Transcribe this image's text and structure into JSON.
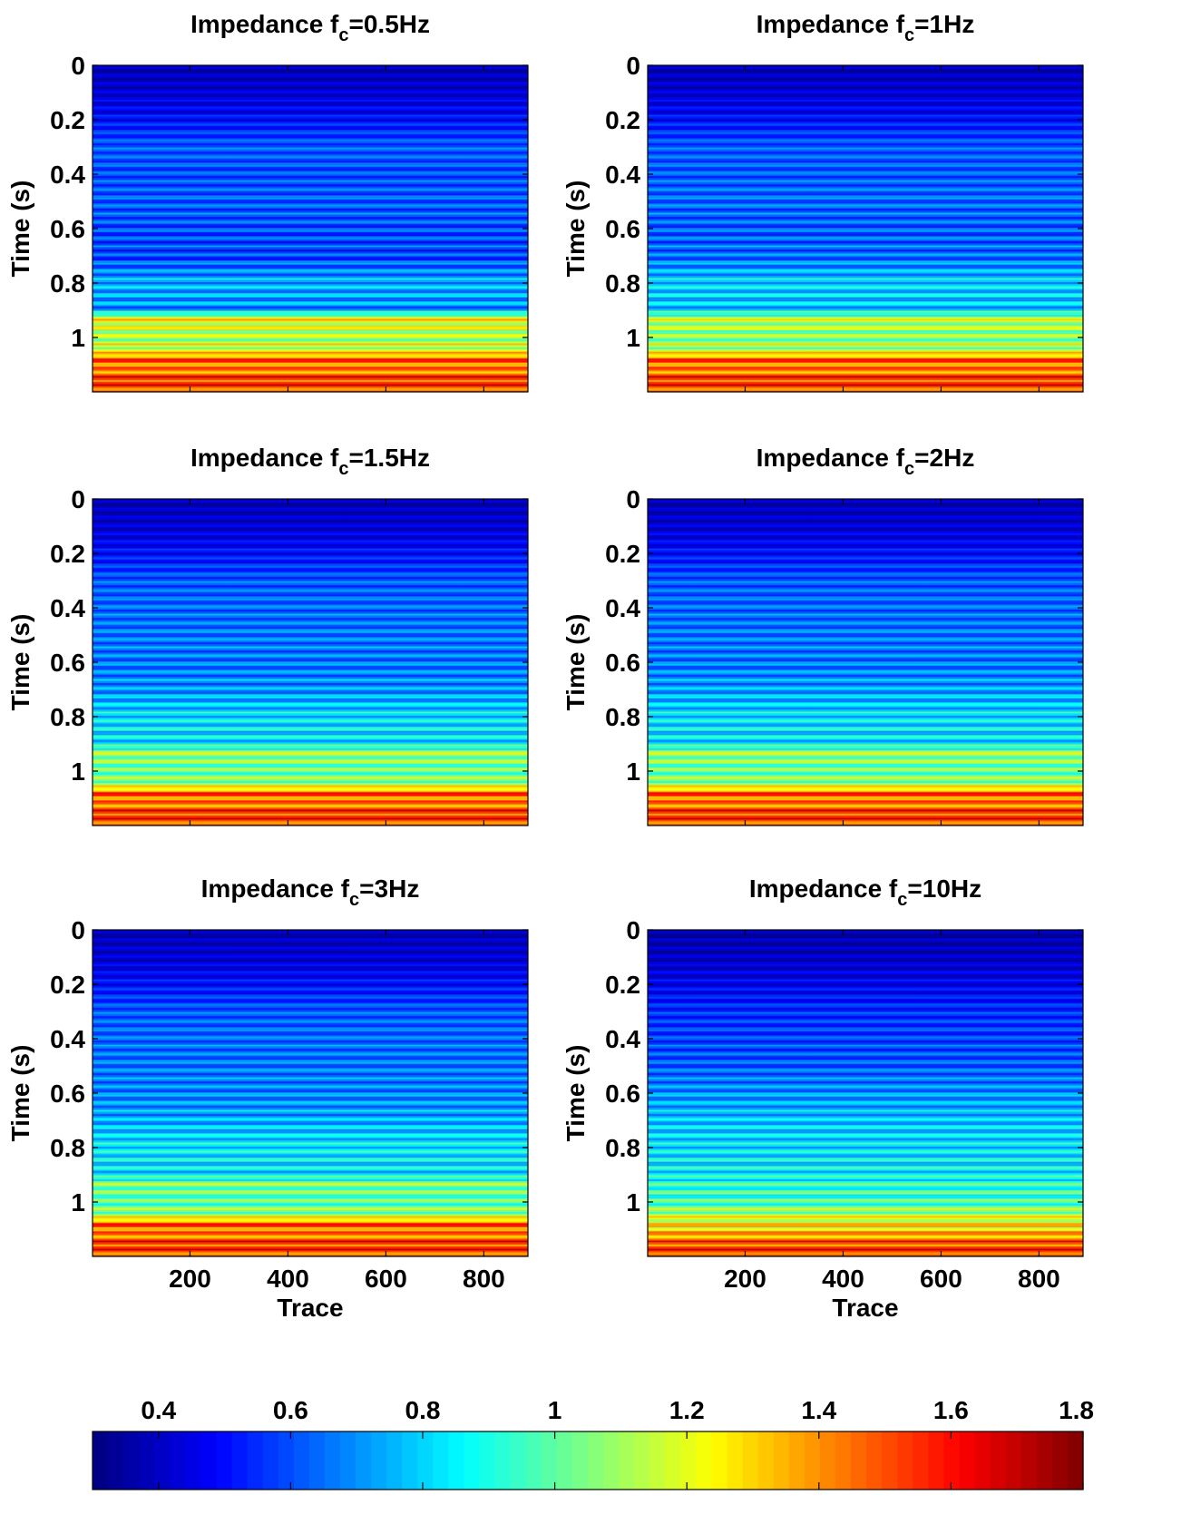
{
  "chart_data": [
    {
      "type": "heatmap",
      "title": "Impedance f_c=0.5Hz",
      "title_parts": {
        "prefix": "Impedance f",
        "sub": "c",
        "suffix": "=0.5Hz"
      },
      "ylabel": "Time (s)",
      "xlabel": "",
      "xlim": [
        1,
        890
      ],
      "ylim": [
        0,
        1.2
      ],
      "y_reversed": true,
      "xticks": [
        200,
        400,
        600,
        800
      ],
      "xtick_labels_shown": false,
      "yticks": [
        0,
        0.2,
        0.4,
        0.6,
        0.8,
        1
      ],
      "ytick_labels": [
        "0",
        "0.2",
        "0.4",
        "0.6",
        "0.8",
        "1"
      ],
      "clim": [
        0.3,
        1.8
      ],
      "colormap": "jet",
      "profile": {
        "time": [
          0,
          0.1,
          0.2,
          0.3,
          0.4,
          0.5,
          0.6,
          0.7,
          0.8,
          0.9,
          0.93,
          1.0,
          1.05,
          1.08,
          1.12,
          1.15,
          1.2
        ],
        "impedance": [
          0.38,
          0.42,
          0.5,
          0.62,
          0.6,
          0.62,
          0.6,
          0.58,
          0.75,
          0.7,
          1.25,
          1.1,
          1.2,
          1.5,
          1.4,
          1.55,
          1.5
        ]
      }
    },
    {
      "type": "heatmap",
      "title": "Impedance f_c=1Hz",
      "title_parts": {
        "prefix": "Impedance f",
        "sub": "c",
        "suffix": "=1Hz"
      },
      "ylabel": "Time (s)",
      "xlabel": "",
      "xlim": [
        1,
        890
      ],
      "ylim": [
        0,
        1.2
      ],
      "y_reversed": true,
      "xticks": [
        200,
        400,
        600,
        800
      ],
      "xtick_labels_shown": false,
      "yticks": [
        0,
        0.2,
        0.4,
        0.6,
        0.8,
        1
      ],
      "ytick_labels": [
        "0",
        "0.2",
        "0.4",
        "0.6",
        "0.8",
        "1"
      ],
      "clim": [
        0.3,
        1.8
      ],
      "colormap": "jet",
      "profile": {
        "time": [
          0,
          0.1,
          0.2,
          0.3,
          0.4,
          0.5,
          0.6,
          0.7,
          0.8,
          0.9,
          0.93,
          1.0,
          1.05,
          1.08,
          1.12,
          1.15,
          1.2
        ],
        "impedance": [
          0.38,
          0.42,
          0.5,
          0.62,
          0.62,
          0.64,
          0.62,
          0.64,
          0.8,
          0.78,
          1.15,
          1.05,
          1.15,
          1.5,
          1.4,
          1.55,
          1.5
        ]
      }
    },
    {
      "type": "heatmap",
      "title": "Impedance f_c=1.5Hz",
      "title_parts": {
        "prefix": "Impedance f",
        "sub": "c",
        "suffix": "=1.5Hz"
      },
      "ylabel": "Time (s)",
      "xlabel": "",
      "xlim": [
        1,
        890
      ],
      "ylim": [
        0,
        1.2
      ],
      "y_reversed": true,
      "xticks": [
        200,
        400,
        600,
        800
      ],
      "xtick_labels_shown": false,
      "yticks": [
        0,
        0.2,
        0.4,
        0.6,
        0.8,
        1
      ],
      "ytick_labels": [
        "0",
        "0.2",
        "0.4",
        "0.6",
        "0.8",
        "1"
      ],
      "clim": [
        0.3,
        1.8
      ],
      "colormap": "jet",
      "profile": {
        "time": [
          0,
          0.1,
          0.2,
          0.3,
          0.4,
          0.5,
          0.6,
          0.7,
          0.8,
          0.9,
          0.93,
          1.0,
          1.05,
          1.08,
          1.12,
          1.15,
          1.2
        ],
        "impedance": [
          0.38,
          0.42,
          0.5,
          0.62,
          0.64,
          0.66,
          0.66,
          0.7,
          0.82,
          0.82,
          1.1,
          1.0,
          1.1,
          1.5,
          1.4,
          1.55,
          1.5
        ]
      }
    },
    {
      "type": "heatmap",
      "title": "Impedance f_c=2Hz",
      "title_parts": {
        "prefix": "Impedance f",
        "sub": "c",
        "suffix": "=2Hz"
      },
      "ylabel": "Time (s)",
      "xlabel": "",
      "xlim": [
        1,
        890
      ],
      "ylim": [
        0,
        1.2
      ],
      "y_reversed": true,
      "xticks": [
        200,
        400,
        600,
        800
      ],
      "xtick_labels_shown": false,
      "yticks": [
        0,
        0.2,
        0.4,
        0.6,
        0.8,
        1
      ],
      "ytick_labels": [
        "0",
        "0.2",
        "0.4",
        "0.6",
        "0.8",
        "1"
      ],
      "clim": [
        0.3,
        1.8
      ],
      "colormap": "jet",
      "profile": {
        "time": [
          0,
          0.1,
          0.2,
          0.3,
          0.4,
          0.5,
          0.6,
          0.7,
          0.8,
          0.9,
          0.93,
          1.0,
          1.05,
          1.08,
          1.12,
          1.15,
          1.2
        ],
        "impedance": [
          0.38,
          0.42,
          0.5,
          0.62,
          0.64,
          0.66,
          0.66,
          0.72,
          0.82,
          0.82,
          1.1,
          1.0,
          1.1,
          1.5,
          1.4,
          1.55,
          1.5
        ]
      }
    },
    {
      "type": "heatmap",
      "title": "Impedance f_c=3Hz",
      "title_parts": {
        "prefix": "Impedance f",
        "sub": "c",
        "suffix": "=3Hz"
      },
      "ylabel": "Time (s)",
      "xlabel": "Trace",
      "xlim": [
        1,
        890
      ],
      "ylim": [
        0,
        1.2
      ],
      "y_reversed": true,
      "xticks": [
        200,
        400,
        600,
        800
      ],
      "xtick_labels_shown": true,
      "xtick_labels": [
        "200",
        "400",
        "600",
        "800"
      ],
      "yticks": [
        0,
        0.2,
        0.4,
        0.6,
        0.8,
        1
      ],
      "ytick_labels": [
        "0",
        "0.2",
        "0.4",
        "0.6",
        "0.8",
        "1"
      ],
      "clim": [
        0.3,
        1.8
      ],
      "colormap": "jet",
      "profile": {
        "time": [
          0,
          0.1,
          0.2,
          0.3,
          0.4,
          0.5,
          0.6,
          0.7,
          0.8,
          0.9,
          0.93,
          1.0,
          1.05,
          1.08,
          1.12,
          1.15,
          1.2
        ],
        "impedance": [
          0.38,
          0.42,
          0.5,
          0.62,
          0.64,
          0.66,
          0.68,
          0.74,
          0.84,
          0.82,
          1.05,
          0.98,
          1.1,
          1.5,
          1.4,
          1.55,
          1.5
        ]
      }
    },
    {
      "type": "heatmap",
      "title": "Impedance f_c=10Hz",
      "title_parts": {
        "prefix": "Impedance f",
        "sub": "c",
        "suffix": "=10Hz"
      },
      "ylabel": "Time (s)",
      "xlabel": "Trace",
      "xlim": [
        1,
        890
      ],
      "ylim": [
        0,
        1.2
      ],
      "y_reversed": true,
      "xticks": [
        200,
        400,
        600,
        800
      ],
      "xtick_labels_shown": true,
      "xtick_labels": [
        "200",
        "400",
        "600",
        "800"
      ],
      "yticks": [
        0,
        0.2,
        0.4,
        0.6,
        0.8,
        1
      ],
      "ytick_labels": [
        "0",
        "0.2",
        "0.4",
        "0.6",
        "0.8",
        "1"
      ],
      "clim": [
        0.3,
        1.8
      ],
      "colormap": "jet",
      "profile": {
        "time": [
          0,
          0.1,
          0.2,
          0.3,
          0.4,
          0.5,
          0.6,
          0.7,
          0.8,
          0.9,
          0.93,
          1.0,
          1.05,
          1.08,
          1.12,
          1.15,
          1.2
        ],
        "impedance": [
          0.36,
          0.4,
          0.46,
          0.55,
          0.58,
          0.62,
          0.7,
          0.78,
          0.82,
          0.85,
          0.92,
          0.95,
          1.15,
          1.25,
          1.35,
          1.5,
          1.55
        ]
      }
    }
  ],
  "colorbar": {
    "orientation": "horizontal",
    "location": "bottom",
    "clim": [
      0.3,
      1.8
    ],
    "ticks": [
      0.4,
      0.6,
      0.8,
      1,
      1.2,
      1.4,
      1.6,
      1.8
    ],
    "tick_labels": [
      "0.4",
      "0.6",
      "0.8",
      "1",
      "1.2",
      "1.4",
      "1.6",
      "1.8"
    ],
    "colormap": "jet",
    "levels": 64
  }
}
